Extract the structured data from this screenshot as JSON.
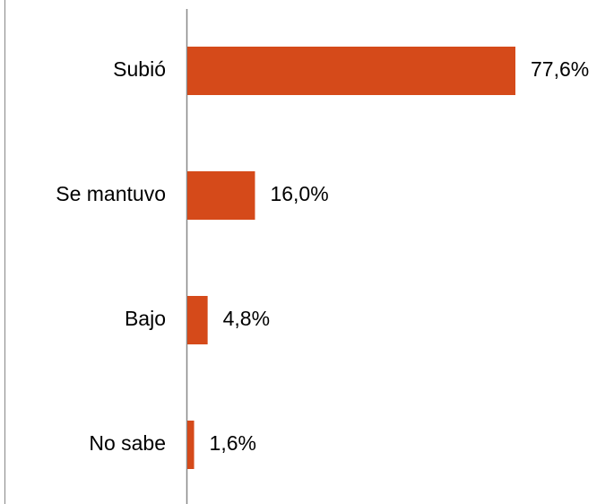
{
  "chart_data": {
    "type": "bar",
    "orientation": "horizontal",
    "categories": [
      "Subió",
      "Se mantuvo",
      "Bajo",
      "No sabe"
    ],
    "values": [
      77.6,
      16.0,
      4.8,
      1.6
    ],
    "value_labels": [
      "77,6%",
      "16,0%",
      "4,8%",
      "1,6%"
    ],
    "color": "#d54a1a"
  }
}
